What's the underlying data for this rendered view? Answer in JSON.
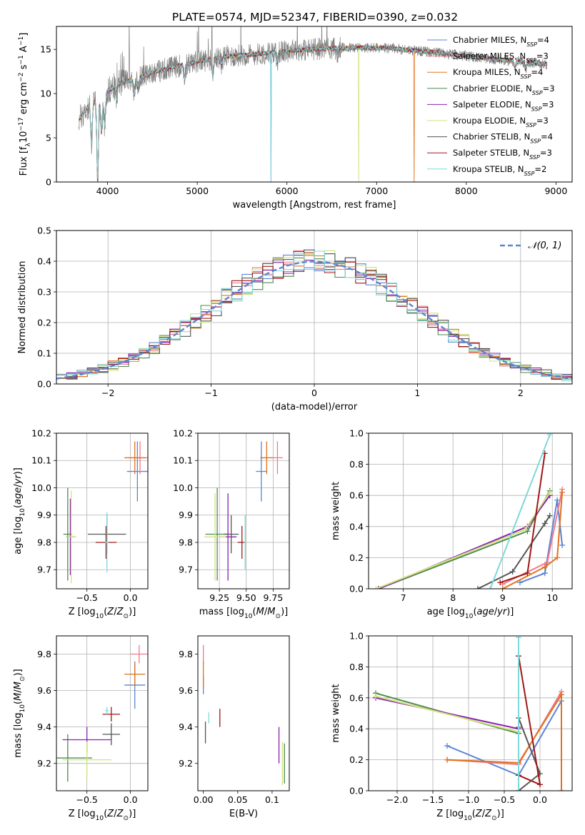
{
  "figure_title": "PLATE=0574, MJD=52347, FIBERID=0390, z=0.032",
  "models": [
    {
      "name": "Chabrier MILES",
      "nssp": "4",
      "color": "#5b84d6"
    },
    {
      "name": "Salpeter MILES",
      "nssp": "3",
      "color": "#ee7a8c"
    },
    {
      "name": "Kroupa MILES",
      "nssp": "4",
      "color": "#e0731e"
    },
    {
      "name": "Chabrier ELODIE",
      "nssp": "3",
      "color": "#4f8a4f"
    },
    {
      "name": "Salpeter ELODIE",
      "nssp": "3",
      "color": "#8a22b0"
    },
    {
      "name": "Kroupa ELODIE",
      "nssp": "3",
      "color": "#cfe47a"
    },
    {
      "name": "Chabrier STELIB",
      "nssp": "4",
      "color": "#555555"
    },
    {
      "name": "Salpeter STELIB",
      "nssp": "3",
      "color": "#a01818"
    },
    {
      "name": "Kroupa STELIB",
      "nssp": "2",
      "color": "#7fd8da"
    }
  ],
  "chart_data": [
    {
      "id": "spectrum",
      "type": "line",
      "xlabel": "wavelength [Angstrom, rest frame]",
      "ylabel": "Flux [f_λ10^-17 erg cm^-2 s^-1 A^-1]",
      "xlim": [
        3430,
        9180
      ],
      "ylim": [
        0,
        17.6
      ],
      "xticks": [
        4000,
        5000,
        6000,
        7000,
        8000,
        9000
      ],
      "yticks": [
        0,
        5,
        10,
        15
      ],
      "grid": false,
      "legend_position": "right",
      "data_color": "#808080",
      "continuum": {
        "x": [
          3680,
          3800,
          3900,
          4000,
          4150,
          4300,
          4500,
          4700,
          5000,
          5300,
          5600,
          6000,
          6400,
          6800,
          7200,
          7500,
          7800,
          8200,
          8600,
          8900
        ],
        "y": [
          7.0,
          8.8,
          9.2,
          10.3,
          11.2,
          11.6,
          12.4,
          12.9,
          13.6,
          14.2,
          14.4,
          14.8,
          15.1,
          15.2,
          15.1,
          14.8,
          14.5,
          14.0,
          13.6,
          13.3
        ]
      },
      "absorption_features": [
        {
          "x": 3820,
          "depth": 4.5
        },
        {
          "x": 3890,
          "depth": 9.0
        },
        {
          "x": 3933,
          "depth": 4.0
        },
        {
          "x": 3968,
          "depth": 3.5
        },
        {
          "x": 4101,
          "depth": 1.5
        },
        {
          "x": 4300,
          "depth": 1.8
        },
        {
          "x": 4340,
          "depth": 1.2
        },
        {
          "x": 4861,
          "depth": 1.5
        },
        {
          "x": 5175,
          "depth": 2.0
        },
        {
          "x": 5270,
          "depth": 0.8
        },
        {
          "x": 5890,
          "depth": 1.2
        },
        {
          "x": 6563,
          "depth": 0.8
        },
        {
          "x": 8542,
          "depth": 0.8
        },
        {
          "x": 8662,
          "depth": 0.7
        }
      ],
      "model_dropouts": [
        {
          "model": "Chabrier MILES",
          "x": 5820
        },
        {
          "model": "Kroupa STELIB",
          "x": 5820
        },
        {
          "model": "Kroupa ELODIE",
          "x": 6800
        },
        {
          "model": "Kroupa MILES",
          "x": 7420
        },
        {
          "model": "Salpeter MILES",
          "x": 3890
        },
        {
          "model": "Chabrier ELODIE",
          "x": 3890
        }
      ]
    },
    {
      "id": "residuals",
      "type": "bar",
      "xlabel": "(data-model)/error",
      "ylabel": "Normed distribution",
      "xlim": [
        -2.5,
        2.5
      ],
      "ylim": [
        0,
        0.5
      ],
      "xticks": [
        -2,
        -1,
        0,
        1,
        2
      ],
      "yticks": [
        0.0,
        0.1,
        0.2,
        0.3,
        0.4,
        0.5
      ],
      "grid": true,
      "legend_position": "top-right",
      "reference_curve": {
        "label": "𝒩(0, 1)",
        "mean": 0,
        "sigma": 1,
        "color": "#5b84d6"
      },
      "bin_width": 0.1,
      "bin_start": -2.5,
      "histogram_amplitude": 0.4
    },
    {
      "id": "age-vs-Z",
      "type": "scatter",
      "xlabel": "Z [log10(Z/Z⊙)]",
      "ylabel": "age  [log10(age/yr)]",
      "xlim": [
        -0.85,
        0.2
      ],
      "ylim": [
        9.63,
        10.2
      ],
      "xticks": [
        -0.5,
        0.0
      ],
      "yticks": [
        9.7,
        9.8,
        9.9,
        10.0,
        10.1,
        10.2
      ],
      "grid": true,
      "points": [
        {
          "model": "Chabrier MILES",
          "x": 0.08,
          "y": 10.06,
          "xerr": 0.12,
          "yerr": 0.11
        },
        {
          "model": "Salpeter MILES",
          "x": 0.11,
          "y": 10.11,
          "xerr": 0.1,
          "yerr": 0.06
        },
        {
          "model": "Kroupa MILES",
          "x": 0.05,
          "y": 10.11,
          "xerr": 0.12,
          "yerr": 0.06
        },
        {
          "model": "Chabrier ELODIE",
          "x": -0.72,
          "y": 9.83,
          "xerr": 0.05,
          "yerr": 0.17
        },
        {
          "model": "Salpeter ELODIE",
          "x": -0.69,
          "y": 9.82,
          "xerr": 0.05,
          "yerr": 0.14
        },
        {
          "model": "Kroupa ELODIE",
          "x": -0.68,
          "y": 9.82,
          "xerr": 0.06,
          "yerr": 0.17
        },
        {
          "model": "Chabrier STELIB",
          "x": -0.27,
          "y": 9.83,
          "xerr": 0.22,
          "yerr": 0.07
        },
        {
          "model": "Salpeter STELIB",
          "x": -0.28,
          "y": 9.8,
          "xerr": 0.12,
          "yerr": 0.06
        },
        {
          "model": "Kroupa STELIB",
          "x": -0.27,
          "y": 9.8,
          "xerr": 0.02,
          "yerr": 0.11
        }
      ]
    },
    {
      "id": "age-vs-mass",
      "type": "scatter",
      "xlabel": "mass [log10(M/M⊙)]",
      "ylabel": "",
      "xlim": [
        9.05,
        9.9
      ],
      "ylim": [
        9.63,
        10.2
      ],
      "xticks": [
        9.25,
        9.5,
        9.75
      ],
      "yticks": [
        9.7,
        9.8,
        9.9,
        10.0,
        10.1,
        10.2
      ],
      "grid": true,
      "points": [
        {
          "model": "Chabrier MILES",
          "x": 9.64,
          "y": 10.06,
          "xerr": 0.05,
          "yerr": 0.11
        },
        {
          "model": "Salpeter MILES",
          "x": 9.79,
          "y": 10.11,
          "xerr": 0.05,
          "yerr": 0.06
        },
        {
          "model": "Kroupa MILES",
          "x": 9.69,
          "y": 10.11,
          "xerr": 0.06,
          "yerr": 0.06
        },
        {
          "model": "Chabrier ELODIE",
          "x": 9.23,
          "y": 9.83,
          "xerr": 0.11,
          "yerr": 0.17
        },
        {
          "model": "Salpeter ELODIE",
          "x": 9.33,
          "y": 9.82,
          "xerr": 0.08,
          "yerr": 0.16
        },
        {
          "model": "Kroupa ELODIE",
          "x": 9.21,
          "y": 9.82,
          "xerr": 0.1,
          "yerr": 0.16
        },
        {
          "model": "Chabrier STELIB",
          "x": 9.36,
          "y": 9.83,
          "xerr": 0.07,
          "yerr": 0.07
        },
        {
          "model": "Salpeter STELIB",
          "x": 9.46,
          "y": 9.8,
          "xerr": 0.04,
          "yerr": 0.06
        },
        {
          "model": "Kroupa STELIB",
          "x": 9.49,
          "y": 9.8,
          "xerr": 0.01,
          "yerr": 0.1
        }
      ]
    },
    {
      "id": "mass-weight-vs-age",
      "type": "line",
      "xlabel": "age  [log10(age/yr)]",
      "ylabel": "mass weight",
      "xlim": [
        6.3,
        10.4
      ],
      "ylim": [
        0,
        1.0
      ],
      "xticks": [
        7,
        8,
        9,
        10
      ],
      "yticks": [
        0.0,
        0.2,
        0.4,
        0.6,
        0.8,
        1.0
      ],
      "grid": true,
      "series": [
        {
          "model": "Chabrier MILES",
          "x": [
            9.35,
            9.85,
            10.1,
            10.2
          ],
          "y": [
            0.04,
            0.1,
            0.57,
            0.28
          ]
        },
        {
          "model": "Salpeter MILES",
          "x": [
            9.0,
            9.9,
            10.2
          ],
          "y": [
            0.03,
            0.17,
            0.64
          ]
        },
        {
          "model": "Kroupa MILES",
          "x": [
            9.0,
            9.85,
            10.1,
            10.2
          ],
          "y": [
            0.0,
            0.14,
            0.2,
            0.62
          ]
        },
        {
          "model": "Chabrier ELODIE",
          "x": [
            6.5,
            9.5,
            9.95
          ],
          "y": [
            0.0,
            0.37,
            0.63
          ]
        },
        {
          "model": "Salpeter ELODIE",
          "x": [
            6.5,
            9.5,
            9.95
          ],
          "y": [
            0.0,
            0.4,
            0.6
          ]
        },
        {
          "model": "Kroupa ELODIE",
          "x": [
            6.45,
            9.45,
            9.95
          ],
          "y": [
            0.0,
            0.38,
            0.62
          ]
        },
        {
          "model": "Chabrier STELIB",
          "x": [
            8.5,
            9.2,
            9.85,
            9.95
          ],
          "y": [
            0.0,
            0.11,
            0.42,
            0.47
          ]
        },
        {
          "model": "Salpeter STELIB",
          "x": [
            8.95,
            9.5,
            9.85
          ],
          "y": [
            0.04,
            0.1,
            0.87
          ]
        },
        {
          "model": "Kroupa STELIB",
          "x": [
            8.75,
            9.95
          ],
          "y": [
            0.0,
            0.99
          ]
        }
      ]
    },
    {
      "id": "mass-vs-Z",
      "type": "scatter",
      "xlabel": "Z [log10(Z/Z⊙)]",
      "ylabel": "mass [log10(M/M⊙)]",
      "xlim": [
        -0.85,
        0.2
      ],
      "ylim": [
        9.05,
        9.9
      ],
      "xticks": [
        -0.5,
        0.0
      ],
      "yticks": [
        9.2,
        9.4,
        9.6,
        9.8
      ],
      "grid": true,
      "points": [
        {
          "model": "Chabrier MILES",
          "x": 0.05,
          "y": 9.63,
          "xerr": 0.12,
          "yerr": 0.13
        },
        {
          "model": "Salpeter MILES",
          "x": 0.1,
          "y": 9.8,
          "xerr": 0.1,
          "yerr": 0.05
        },
        {
          "model": "Kroupa MILES",
          "x": 0.05,
          "y": 9.69,
          "xerr": 0.12,
          "yerr": 0.06
        },
        {
          "model": "Chabrier ELODIE",
          "x": -0.72,
          "y": 9.23,
          "xerr": 0.28,
          "yerr": 0.13
        },
        {
          "model": "Salpeter ELODIE",
          "x": -0.5,
          "y": 9.33,
          "xerr": 0.28,
          "yerr": 0.07
        },
        {
          "model": "Kroupa ELODIE",
          "x": -0.5,
          "y": 9.22,
          "xerr": 0.28,
          "yerr": 0.1
        },
        {
          "model": "Chabrier STELIB",
          "x": -0.22,
          "y": 9.36,
          "xerr": 0.1,
          "yerr": 0.06
        },
        {
          "model": "Salpeter STELIB",
          "x": -0.22,
          "y": 9.47,
          "xerr": 0.1,
          "yerr": 0.04
        },
        {
          "model": "Kroupa STELIB",
          "x": -0.27,
          "y": 9.49,
          "xerr": 0.02,
          "yerr": 0.02
        }
      ]
    },
    {
      "id": "mass-vs-ebv",
      "type": "scatter",
      "xlabel": "E(B-V)",
      "ylabel": "",
      "xlim": [
        -0.008,
        0.125
      ],
      "ylim": [
        9.05,
        9.9
      ],
      "xticks": [
        0.0,
        0.05,
        0.1
      ],
      "yticks": [
        9.2,
        9.4,
        9.6,
        9.8
      ],
      "grid": false,
      "points": [
        {
          "model": "Chabrier MILES",
          "x": 0.0,
          "y": 9.63,
          "xerr": 0.0,
          "yerr": 0.05
        },
        {
          "model": "Salpeter MILES",
          "x": 0.0,
          "y": 9.8,
          "xerr": 0.0,
          "yerr": 0.05
        },
        {
          "model": "Kroupa MILES",
          "x": 0.0,
          "y": 9.69,
          "xerr": 0.0,
          "yerr": 0.07
        },
        {
          "model": "Chabrier ELODIE",
          "x": 0.118,
          "y": 9.2,
          "xerr": 0.0,
          "yerr": 0.11
        },
        {
          "model": "Salpeter ELODIE",
          "x": 0.11,
          "y": 9.3,
          "xerr": 0.0,
          "yerr": 0.1
        },
        {
          "model": "Kroupa ELODIE",
          "x": 0.115,
          "y": 9.2,
          "xerr": 0.0,
          "yerr": 0.12
        },
        {
          "model": "Chabrier STELIB",
          "x": 0.003,
          "y": 9.37,
          "xerr": 0.0,
          "yerr": 0.06
        },
        {
          "model": "Salpeter STELIB",
          "x": 0.024,
          "y": 9.45,
          "xerr": 0.0,
          "yerr": 0.05
        },
        {
          "model": "Kroupa STELIB",
          "x": 0.008,
          "y": 9.45,
          "xerr": 0.0,
          "yerr": 0.03
        }
      ]
    },
    {
      "id": "mass-weight-vs-Z",
      "type": "line",
      "xlabel": "Z [log10(Z/Z⊙)]",
      "ylabel": "mass weight",
      "xlim": [
        -2.4,
        0.45
      ],
      "ylim": [
        0,
        1.0
      ],
      "xticks": [
        -2.0,
        -1.5,
        -1.0,
        -0.5,
        0.0
      ],
      "yticks": [
        0.0,
        0.2,
        0.4,
        0.6,
        0.8,
        1.0
      ],
      "grid": true,
      "series": [
        {
          "model": "Chabrier MILES",
          "x": [
            -1.3,
            -0.3,
            0.3,
            0.3
          ],
          "y": [
            0.29,
            0.1,
            0.58,
            0.0
          ]
        },
        {
          "model": "Salpeter MILES",
          "x": [
            -1.3,
            -0.3,
            0.3
          ],
          "y": [
            0.2,
            0.17,
            0.64
          ]
        },
        {
          "model": "Kroupa MILES",
          "x": [
            -1.3,
            -0.3,
            0.3,
            0.3
          ],
          "y": [
            0.2,
            0.18,
            0.62,
            0.0
          ]
        },
        {
          "model": "Chabrier ELODIE",
          "x": [
            -2.3,
            -0.3,
            -0.3
          ],
          "y": [
            0.63,
            0.37,
            0.0
          ]
        },
        {
          "model": "Salpeter ELODIE",
          "x": [
            -2.3,
            -0.3,
            -0.3
          ],
          "y": [
            0.6,
            0.4,
            0.0
          ]
        },
        {
          "model": "Kroupa ELODIE",
          "x": [
            -2.3,
            -0.3,
            -0.3
          ],
          "y": [
            0.61,
            0.38,
            0.0
          ]
        },
        {
          "model": "Chabrier STELIB",
          "x": [
            -0.3,
            0.0,
            -0.3,
            -0.3
          ],
          "y": [
            0.0,
            0.11,
            0.47,
            0.41
          ]
        },
        {
          "model": "Salpeter STELIB",
          "x": [
            -0.3,
            0.0,
            -0.3
          ],
          "y": [
            0.87,
            0.04,
            0.1
          ]
        },
        {
          "model": "Kroupa STELIB",
          "x": [
            -0.3,
            -0.3
          ],
          "y": [
            0.0,
            0.99
          ]
        }
      ]
    }
  ]
}
